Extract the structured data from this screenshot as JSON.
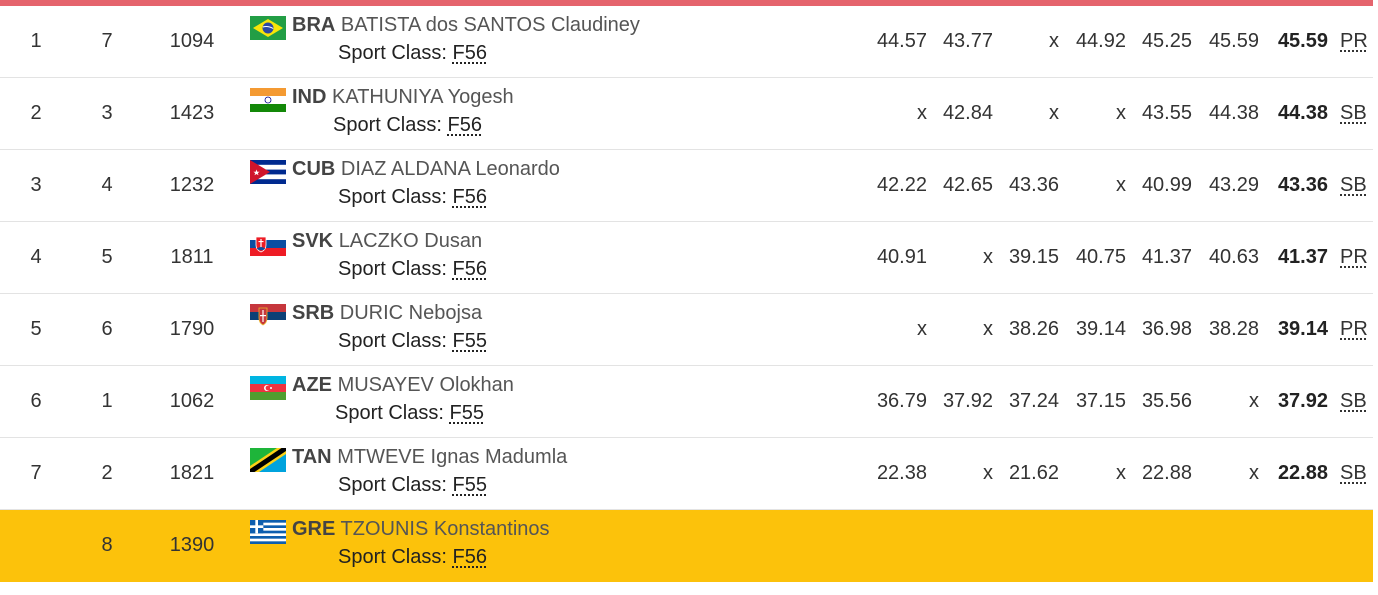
{
  "rows": [
    {
      "rank": "1",
      "lane": "7",
      "bib": "1094",
      "noc": "BRA",
      "name": "BATISTA dos SANTOS Claudiney",
      "sport_label": "Sport Class:",
      "sport_class": "F56",
      "flag": "flag-bra-icon",
      "attempts": [
        "44.57",
        "43.77",
        "x",
        "44.92",
        "45.25",
        "45.59"
      ],
      "best": "45.59",
      "record": "PR"
    },
    {
      "rank": "2",
      "lane": "3",
      "bib": "1423",
      "noc": "IND",
      "name": "KATHUNIYA Yogesh",
      "sport_label": "Sport Class:",
      "sport_class": "F56",
      "flag": "flag-ind-icon",
      "attempts": [
        "x",
        "42.84",
        "x",
        "x",
        "43.55",
        "44.38"
      ],
      "best": "44.38",
      "record": "SB"
    },
    {
      "rank": "3",
      "lane": "4",
      "bib": "1232",
      "noc": "CUB",
      "name": "DIAZ ALDANA Leonardo",
      "sport_label": "Sport Class:",
      "sport_class": "F56",
      "flag": "flag-cub-icon",
      "attempts": [
        "42.22",
        "42.65",
        "43.36",
        "x",
        "40.99",
        "43.29"
      ],
      "best": "43.36",
      "record": "SB"
    },
    {
      "rank": "4",
      "lane": "5",
      "bib": "1811",
      "noc": "SVK",
      "name": "LACZKO Dusan",
      "sport_label": "Sport Class:",
      "sport_class": "F56",
      "flag": "flag-svk-icon",
      "attempts": [
        "40.91",
        "x",
        "39.15",
        "40.75",
        "41.37",
        "40.63"
      ],
      "best": "41.37",
      "record": "PR"
    },
    {
      "rank": "5",
      "lane": "6",
      "bib": "1790",
      "noc": "SRB",
      "name": "DURIC Nebojsa",
      "sport_label": "Sport Class:",
      "sport_class": "F55",
      "flag": "flag-srb-icon",
      "attempts": [
        "x",
        "x",
        "38.26",
        "39.14",
        "36.98",
        "38.28"
      ],
      "best": "39.14",
      "record": "PR"
    },
    {
      "rank": "6",
      "lane": "1",
      "bib": "1062",
      "noc": "AZE",
      "name": "MUSAYEV Olokhan",
      "sport_label": "Sport Class:",
      "sport_class": "F55",
      "flag": "flag-aze-icon",
      "attempts": [
        "36.79",
        "37.92",
        "37.24",
        "37.15",
        "35.56",
        "x"
      ],
      "best": "37.92",
      "record": "SB"
    },
    {
      "rank": "7",
      "lane": "2",
      "bib": "1821",
      "noc": "TAN",
      "name": "MTWEVE Ignas Madumla",
      "sport_label": "Sport Class:",
      "sport_class": "F55",
      "flag": "flag-tan-icon",
      "attempts": [
        "22.38",
        "x",
        "21.62",
        "x",
        "22.88",
        "x"
      ],
      "best": "22.88",
      "record": "SB"
    },
    {
      "rank": "",
      "lane": "8",
      "bib": "1390",
      "noc": "GRE",
      "name": "TZOUNIS Konstantinos",
      "sport_label": "Sport Class:",
      "sport_class": "F56",
      "flag": "flag-gre-icon",
      "attempts": [
        "",
        "",
        "",
        "",
        "",
        ""
      ],
      "best": "",
      "record": ""
    }
  ],
  "colors": {
    "top_bar": "#e5646d",
    "highlight": "#fcc20b"
  }
}
